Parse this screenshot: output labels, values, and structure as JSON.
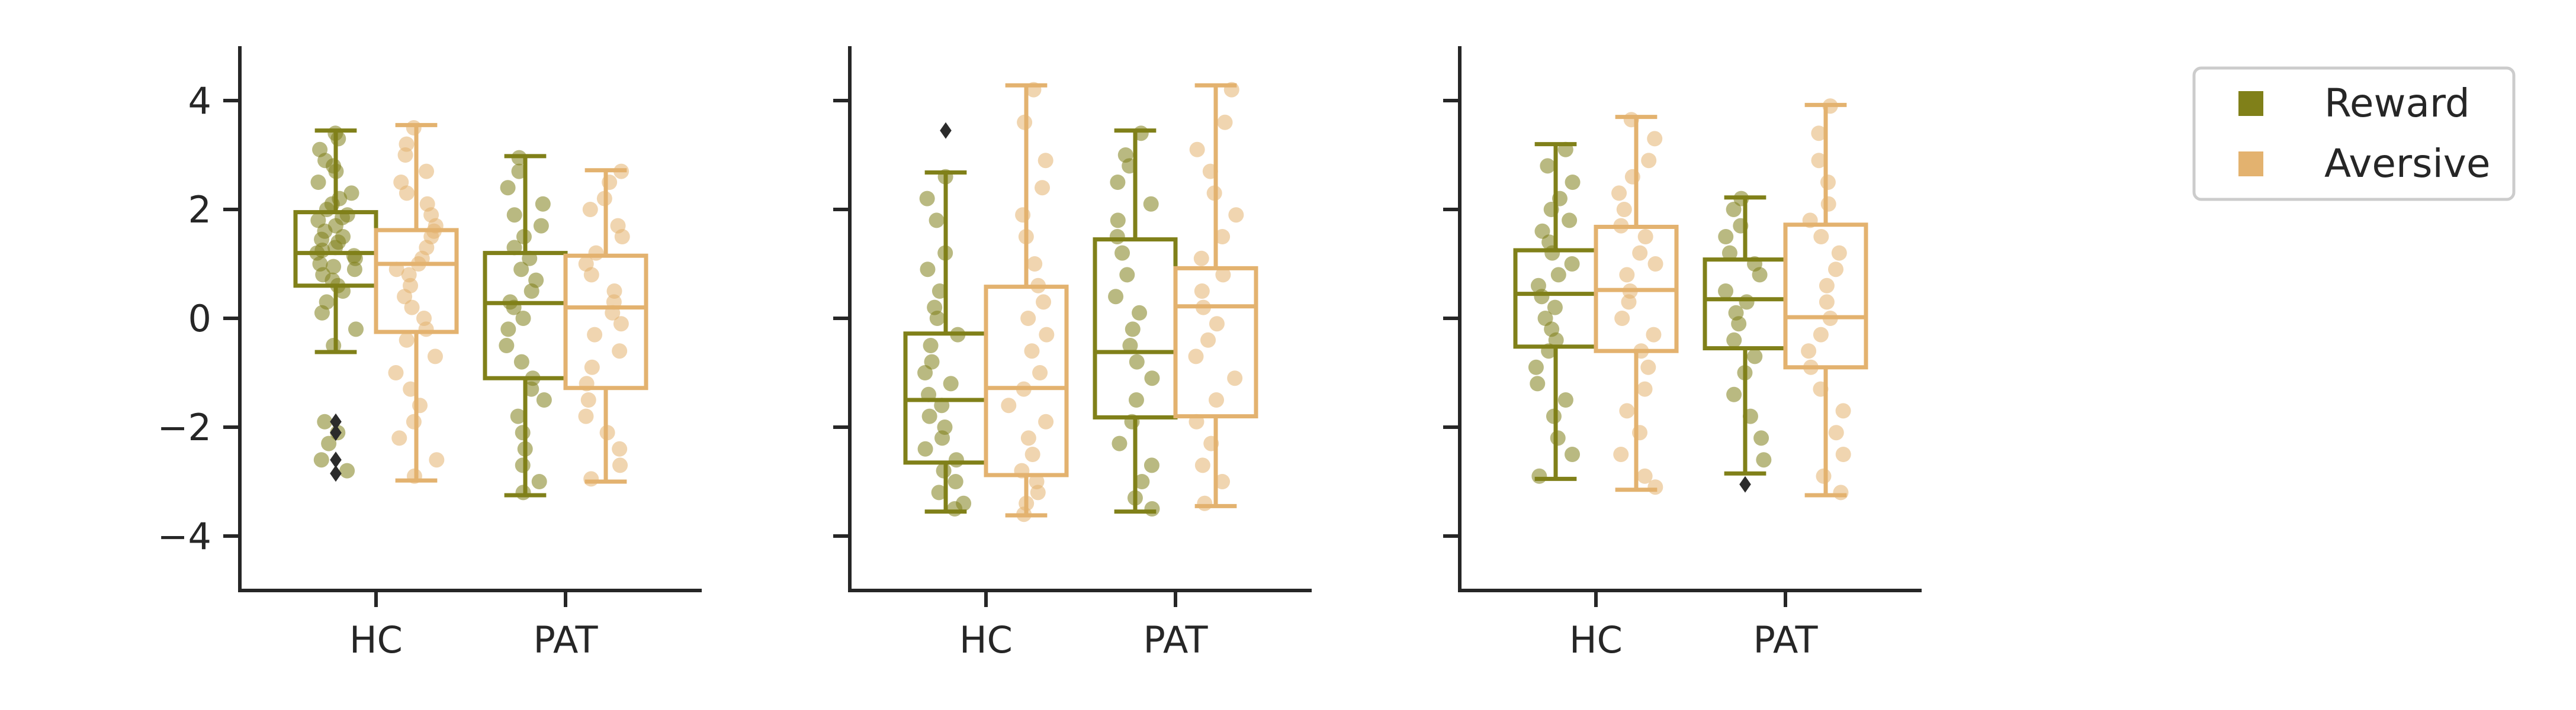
{
  "colors": {
    "reward": "#808019",
    "aversive": "#e3b26f",
    "axis": "#262626",
    "outlier": "#2b2b2b"
  },
  "chart_data": [
    {
      "type": "box",
      "categories": [
        "HC",
        "PAT"
      ],
      "ylim": [
        -5,
        5
      ],
      "yticks": [
        -4,
        -2,
        0,
        2,
        4
      ],
      "ytick_labels": [
        "−4",
        "−2",
        "0",
        "2",
        "4"
      ],
      "show_yticklabels": true,
      "series": [
        {
          "name": "Reward",
          "boxes": [
            {
              "whislo": -0.62,
              "q1": 0.6,
              "med": 1.2,
              "q3": 1.95,
              "whishi": 3.45,
              "points": [
                3.4,
                3.3,
                3.1,
                2.9,
                2.8,
                2.7,
                2.5,
                2.3,
                2.2,
                2.1,
                2.0,
                1.9,
                1.85,
                1.8,
                1.7,
                1.6,
                1.5,
                1.45,
                1.4,
                1.3,
                1.25,
                1.2,
                1.15,
                1.1,
                1.0,
                0.95,
                0.9,
                0.8,
                0.7,
                0.6,
                0.5,
                0.3,
                0.1,
                -0.2,
                -0.5,
                -1.9,
                -2.1,
                -2.3,
                -2.6,
                -2.8
              ],
              "outliers": [
                -1.9,
                -2.1,
                -2.6,
                -2.85
              ]
            },
            {
              "whislo": -3.25,
              "q1": -1.1,
              "med": 0.28,
              "q3": 1.2,
              "whishi": 2.98,
              "points": [
                2.95,
                2.7,
                2.4,
                2.1,
                1.9,
                1.7,
                1.5,
                1.3,
                1.1,
                0.9,
                0.7,
                0.5,
                0.3,
                0.2,
                0.0,
                -0.2,
                -0.5,
                -0.8,
                -1.1,
                -1.3,
                -1.5,
                -1.8,
                -2.1,
                -2.4,
                -2.7,
                -3.0,
                -3.2
              ],
              "outliers": []
            }
          ]
        },
        {
          "name": "Aversive",
          "boxes": [
            {
              "whislo": -2.98,
              "q1": -0.25,
              "med": 1.0,
              "q3": 1.62,
              "whishi": 3.55,
              "points": [
                3.5,
                3.2,
                3.0,
                2.7,
                2.5,
                2.3,
                2.1,
                1.9,
                1.7,
                1.6,
                1.5,
                1.3,
                1.1,
                1.0,
                0.9,
                0.8,
                0.6,
                0.4,
                0.2,
                0.0,
                -0.2,
                -0.4,
                -0.7,
                -1.0,
                -1.3,
                -1.6,
                -1.9,
                -2.2,
                -2.6,
                -2.9
              ],
              "outliers": []
            },
            {
              "whislo": -3.0,
              "q1": -1.28,
              "med": 0.2,
              "q3": 1.15,
              "whishi": 2.72,
              "points": [
                2.7,
                2.5,
                2.2,
                2.0,
                1.7,
                1.5,
                1.2,
                1.0,
                0.8,
                0.5,
                0.3,
                0.1,
                -0.1,
                -0.3,
                -0.6,
                -0.9,
                -1.2,
                -1.5,
                -1.8,
                -2.1,
                -2.4,
                -2.7,
                -2.95
              ],
              "outliers": []
            }
          ]
        }
      ]
    },
    {
      "type": "box",
      "categories": [
        "HC",
        "PAT"
      ],
      "ylim": [
        -5,
        5
      ],
      "yticks": [
        -4,
        -2,
        0,
        2,
        4
      ],
      "ytick_labels": [
        "",
        "",
        "",
        "",
        ""
      ],
      "show_yticklabels": false,
      "series": [
        {
          "name": "Reward",
          "boxes": [
            {
              "whislo": -3.55,
              "q1": -2.65,
              "med": -1.5,
              "q3": -0.28,
              "whishi": 2.68,
              "points": [
                2.6,
                2.2,
                1.8,
                1.2,
                0.9,
                0.5,
                0.2,
                0.0,
                -0.3,
                -0.5,
                -0.8,
                -1.0,
                -1.2,
                -1.4,
                -1.6,
                -1.8,
                -2.0,
                -2.2,
                -2.4,
                -2.6,
                -2.8,
                -3.0,
                -3.2,
                -3.4,
                -3.5
              ],
              "outliers": [
                3.45
              ]
            },
            {
              "whislo": -3.55,
              "q1": -1.82,
              "med": -0.62,
              "q3": 1.45,
              "whishi": 3.45,
              "points": [
                3.4,
                3.0,
                2.8,
                2.5,
                2.1,
                1.8,
                1.5,
                1.2,
                0.8,
                0.4,
                0.1,
                -0.2,
                -0.5,
                -0.8,
                -1.1,
                -1.5,
                -1.9,
                -2.3,
                -2.7,
                -3.0,
                -3.3,
                -3.5
              ],
              "outliers": []
            }
          ]
        },
        {
          "name": "Aversive",
          "boxes": [
            {
              "whislo": -3.62,
              "q1": -2.88,
              "med": -1.28,
              "q3": 0.58,
              "whishi": 4.28,
              "points": [
                4.2,
                3.6,
                2.9,
                2.4,
                1.9,
                1.5,
                1.0,
                0.6,
                0.3,
                0.0,
                -0.3,
                -0.6,
                -1.0,
                -1.3,
                -1.6,
                -1.9,
                -2.2,
                -2.5,
                -2.8,
                -3.0,
                -3.2,
                -3.4,
                -3.6
              ],
              "outliers": []
            },
            {
              "whislo": -3.45,
              "q1": -1.8,
              "med": 0.22,
              "q3": 0.92,
              "whishi": 4.28,
              "points": [
                4.2,
                3.6,
                3.1,
                2.7,
                2.3,
                1.9,
                1.5,
                1.1,
                0.8,
                0.5,
                0.2,
                -0.1,
                -0.4,
                -0.7,
                -1.1,
                -1.5,
                -1.9,
                -2.3,
                -2.7,
                -3.0,
                -3.4
              ],
              "outliers": []
            }
          ]
        }
      ]
    },
    {
      "type": "box",
      "categories": [
        "HC",
        "PAT"
      ],
      "ylim": [
        -5,
        5
      ],
      "yticks": [
        -4,
        -2,
        0,
        2,
        4
      ],
      "ytick_labels": [
        "",
        "",
        "",
        "",
        ""
      ],
      "show_yticklabels": false,
      "series": [
        {
          "name": "Reward",
          "boxes": [
            {
              "whislo": -2.95,
              "q1": -0.52,
              "med": 0.45,
              "q3": 1.25,
              "whishi": 3.2,
              "points": [
                3.1,
                2.8,
                2.5,
                2.2,
                2.0,
                1.8,
                1.6,
                1.4,
                1.2,
                1.0,
                0.8,
                0.6,
                0.4,
                0.2,
                0.0,
                -0.2,
                -0.4,
                -0.6,
                -0.9,
                -1.2,
                -1.5,
                -1.8,
                -2.2,
                -2.5,
                -2.9
              ],
              "outliers": []
            },
            {
              "whislo": -2.85,
              "q1": -0.55,
              "med": 0.35,
              "q3": 1.08,
              "whishi": 2.22,
              "points": [
                2.2,
                2.0,
                1.7,
                1.5,
                1.2,
                1.0,
                0.8,
                0.5,
                0.3,
                0.1,
                -0.1,
                -0.4,
                -0.7,
                -1.0,
                -1.4,
                -1.8,
                -2.2,
                -2.6
              ],
              "outliers": [
                -3.05
              ]
            }
          ]
        },
        {
          "name": "Aversive",
          "boxes": [
            {
              "whislo": -3.15,
              "q1": -0.6,
              "med": 0.52,
              "q3": 1.68,
              "whishi": 3.7,
              "points": [
                3.65,
                3.3,
                2.9,
                2.6,
                2.3,
                2.0,
                1.7,
                1.5,
                1.2,
                1.0,
                0.8,
                0.5,
                0.3,
                0.0,
                -0.3,
                -0.6,
                -0.9,
                -1.3,
                -1.7,
                -2.1,
                -2.5,
                -2.9,
                -3.1
              ],
              "outliers": []
            },
            {
              "whislo": -3.25,
              "q1": -0.9,
              "med": 0.02,
              "q3": 1.72,
              "whishi": 3.92,
              "points": [
                3.9,
                3.4,
                2.9,
                2.5,
                2.1,
                1.8,
                1.5,
                1.2,
                0.9,
                0.6,
                0.3,
                0.0,
                -0.3,
                -0.6,
                -0.9,
                -1.3,
                -1.7,
                -2.1,
                -2.5,
                -2.9,
                -3.2
              ],
              "outliers": []
            }
          ]
        }
      ]
    }
  ],
  "legend": {
    "items": [
      {
        "label": "Reward",
        "color_key": "reward"
      },
      {
        "label": "Aversive",
        "color_key": "aversive"
      }
    ]
  }
}
